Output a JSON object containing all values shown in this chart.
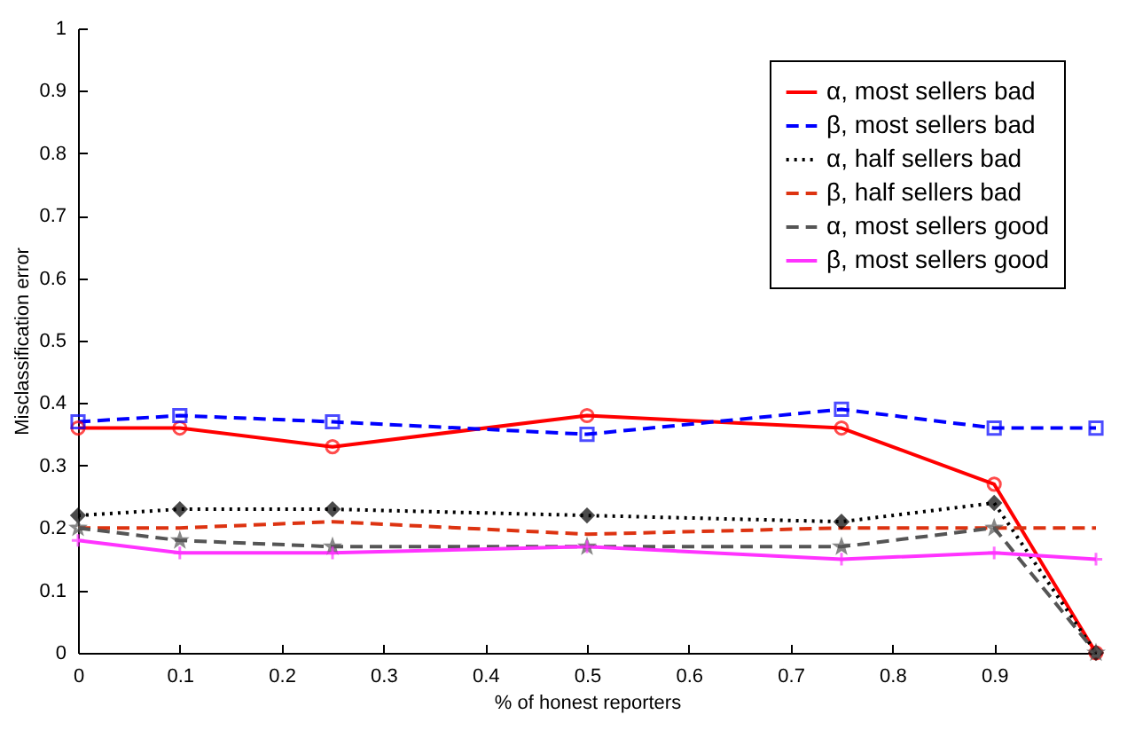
{
  "chart_data": {
    "type": "line",
    "xlabel": "% of honest reporters",
    "ylabel": "Misclassification error",
    "x": [
      0,
      0.1,
      0.25,
      0.5,
      0.75,
      0.9,
      1
    ],
    "xlim": [
      0,
      1
    ],
    "xticks": [
      0,
      0.1,
      0.2,
      0.3,
      0.4,
      0.5,
      0.6,
      0.7,
      0.8,
      0.9
    ],
    "ylim": [
      0,
      1
    ],
    "yticks": [
      0,
      0.1,
      0.2,
      0.3,
      0.4,
      0.5,
      0.6,
      0.7,
      0.8,
      0.9,
      1
    ],
    "grid": false,
    "legend": "top right",
    "series": [
      {
        "name": "α, most sellers bad",
        "color": "#ff0000",
        "marker": "circle",
        "line_style": "solid",
        "values": [
          0.36,
          0.36,
          0.33,
          0.38,
          0.36,
          0.27,
          0
        ]
      },
      {
        "name": "β, most sellers bad",
        "color": "#0000ff",
        "marker": "square",
        "line_style": "dashed",
        "values": [
          0.37,
          0.38,
          0.37,
          0.35,
          0.39,
          0.36,
          0.36
        ]
      },
      {
        "name": "α, half sellers bad",
        "color": "#000000",
        "marker": "diamond",
        "line_style": "dotted",
        "values": [
          0.22,
          0.23,
          0.23,
          0.22,
          0.21,
          0.24,
          0
        ]
      },
      {
        "name": "β, half sellers bad",
        "color": "#dd3311",
        "marker": "none",
        "line_style": "dashed",
        "values": [
          0.2,
          0.2,
          0.21,
          0.19,
          0.2,
          0.2,
          0.2
        ]
      },
      {
        "name": "α, most sellers good",
        "color": "#555555",
        "marker": "star",
        "line_style": "dashed",
        "values": [
          0.2,
          0.18,
          0.17,
          0.17,
          0.17,
          0.2,
          0
        ]
      },
      {
        "name": "β, most sellers good",
        "color": "#ff33ff",
        "marker": "cross",
        "line_style": "solid",
        "values": [
          0.18,
          0.16,
          0.16,
          0.17,
          0.15,
          0.16,
          0.15
        ]
      }
    ]
  }
}
